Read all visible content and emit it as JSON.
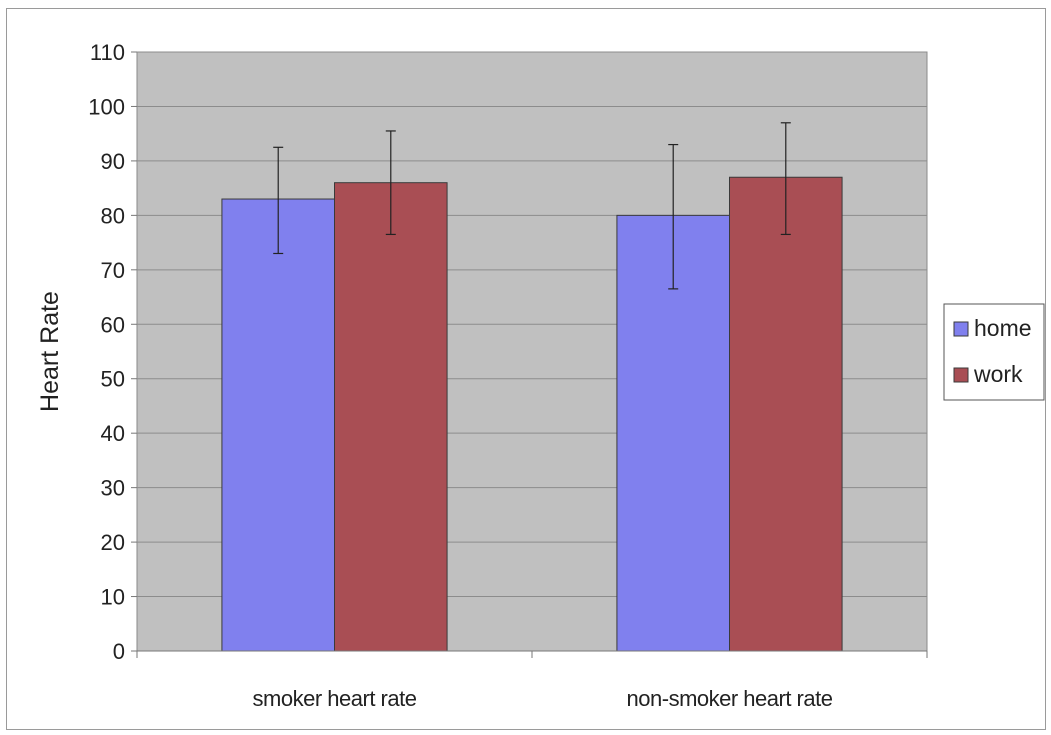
{
  "chart_data": {
    "type": "bar",
    "title": "",
    "xlabel": "",
    "ylabel": "Heart Rate",
    "categories": [
      "smoker heart rate",
      "non-smoker heart rate"
    ],
    "series": [
      {
        "name": "home",
        "color": "#8080ee",
        "values": [
          83,
          80
        ],
        "error_low": [
          73,
          66.5
        ],
        "error_high": [
          92.5,
          93
        ]
      },
      {
        "name": "work",
        "color": "#a94e54",
        "values": [
          86,
          87
        ],
        "error_low": [
          76.5,
          76.5
        ],
        "error_high": [
          95.5,
          97
        ]
      }
    ],
    "ylim": [
      0,
      110
    ],
    "yticks": [
      0,
      10,
      20,
      30,
      40,
      50,
      60,
      70,
      80,
      90,
      100,
      110
    ],
    "grid": true,
    "plot_background": "#c0c0c0",
    "legend": "right"
  }
}
